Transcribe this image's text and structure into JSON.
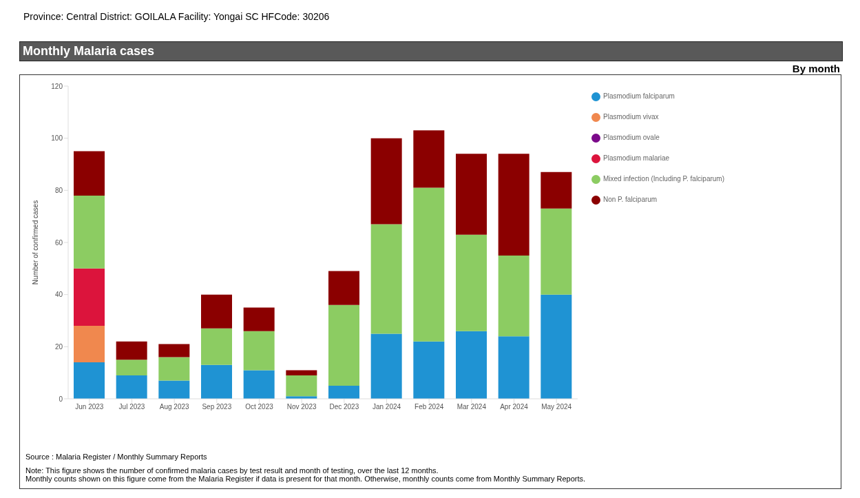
{
  "chart_data": {
    "type": "bar",
    "title": "Monthly Malaria cases",
    "subtitle": "By month",
    "ylabel": "Number of confirmed cases",
    "categories": [
      "Jun 2023",
      "Jul 2023",
      "Aug 2023",
      "Sep 2023",
      "Oct 2023",
      "Nov 2023",
      "Dec 2023",
      "Jan 2024",
      "Feb 2024",
      "Mar 2024",
      "Apr 2024",
      "May 2024"
    ],
    "series": [
      {
        "name": "Plasmodium falciparum",
        "color": "#1f93d3",
        "values": [
          14,
          9,
          7,
          13,
          11,
          1,
          5,
          25,
          22,
          26,
          24,
          40
        ]
      },
      {
        "name": "Plasmodium vivax",
        "color": "#f0884e",
        "values": [
          14,
          0,
          0,
          0,
          0,
          0,
          0,
          0,
          0,
          0,
          0,
          0
        ]
      },
      {
        "name": "Plasmodium ovale",
        "color": "#7b0a8a",
        "values": [
          0,
          0,
          0,
          0,
          0,
          0,
          0,
          0,
          0,
          0,
          0,
          0
        ]
      },
      {
        "name": "Plasmodium malariae",
        "color": "#dc143c",
        "values": [
          22,
          0,
          0,
          0,
          0,
          0,
          0,
          0,
          0,
          0,
          0,
          0
        ]
      },
      {
        "name": "Mixed infection (Including P. falciparum)",
        "color": "#8ccc62",
        "values": [
          28,
          6,
          9,
          14,
          15,
          8,
          31,
          42,
          59,
          37,
          31,
          33
        ]
      },
      {
        "name": "Non P. falciparum",
        "color": "#8b0000",
        "values": [
          17,
          7,
          5,
          13,
          9,
          2,
          13,
          33,
          22,
          31,
          39,
          14
        ]
      }
    ],
    "stacked": true,
    "ylim": [
      0,
      120
    ],
    "yticks": [
      0,
      20,
      40,
      60,
      80,
      100,
      120
    ],
    "grid": false,
    "legend": "top right",
    "annotations": [
      "Province: Central    District: GOILALA    Facility: Yongai SC  HFCode: 30206",
      "Source : Malaria Register / Monthly Summary Reports",
      "Note: This figure shows the number of confirmed malaria cases by test result and month of testing, over the last 12 months.",
      "Monthly counts shown on this figure come from the Malaria Register if data is present for that month. Otherwise, monthly counts come from Monthly Summary Reports."
    ]
  }
}
